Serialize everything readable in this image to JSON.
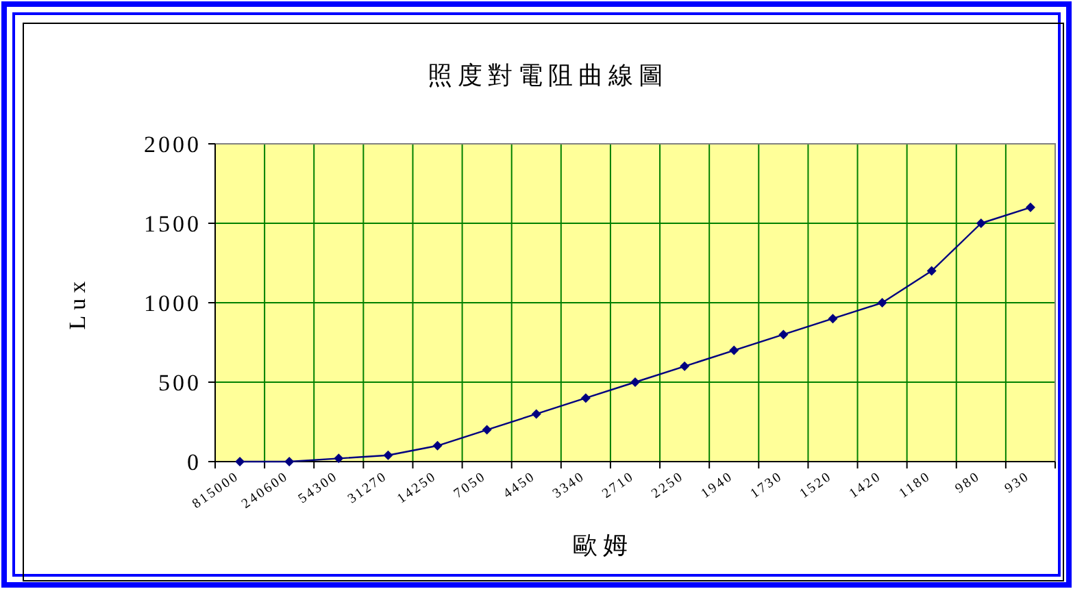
{
  "chart_data": {
    "type": "line",
    "title": "照度對電阻曲線圖",
    "xlabel": "歐姆",
    "ylabel": "Lux",
    "categories": [
      "815000",
      "240600",
      "54300",
      "31270",
      "14250",
      "7050",
      "4450",
      "3340",
      "2710",
      "2250",
      "1940",
      "1730",
      "1520",
      "1420",
      "1180",
      "980",
      "930"
    ],
    "series": [
      {
        "color": "#000080",
        "values": [
          0,
          0,
          20,
          40,
          100,
          200,
          300,
          400,
          500,
          600,
          700,
          800,
          900,
          1000,
          1200,
          1500,
          1600
        ]
      }
    ],
    "ylim": [
      0,
      2000
    ],
    "yticks": [
      0,
      500,
      1000,
      1500,
      2000
    ],
    "grid": true,
    "marker": "diamond",
    "line_style": "solid"
  }
}
